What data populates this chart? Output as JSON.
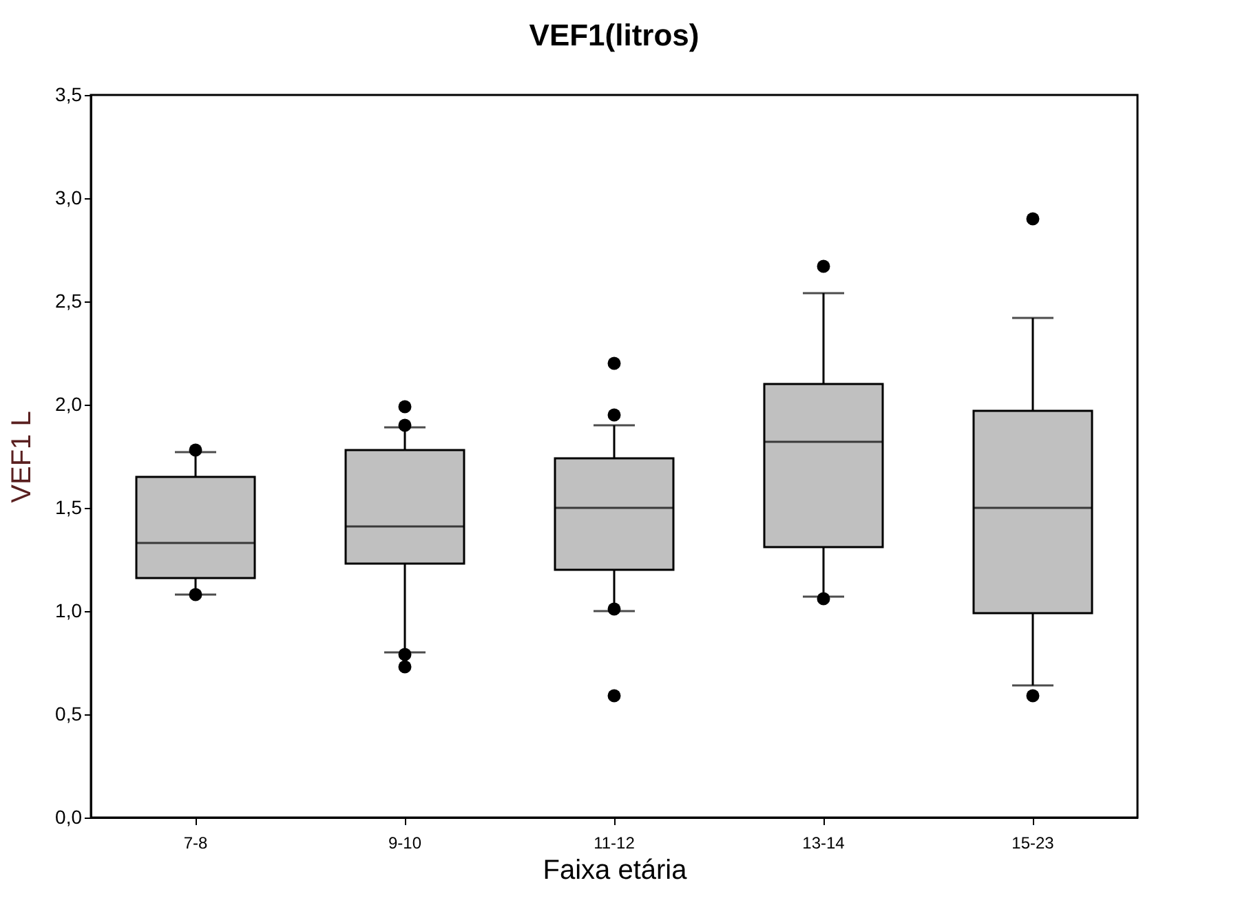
{
  "chart_data": {
    "type": "box",
    "title": "VEF1(litros)",
    "xlabel": "Faixa etária",
    "ylabel": "VEF1 L",
    "categories": [
      "7-8",
      "9-10",
      "11-12",
      "13-14",
      "15-23"
    ],
    "boxes": [
      {
        "low": 1.08,
        "q1": 1.16,
        "median": 1.33,
        "q3": 1.65,
        "high": 1.77,
        "outliers": [
          1.78,
          1.08
        ]
      },
      {
        "low": 0.8,
        "q1": 1.23,
        "median": 1.41,
        "q3": 1.78,
        "high": 1.89,
        "outliers": [
          1.99,
          1.9,
          0.79,
          0.73
        ]
      },
      {
        "low": 1.0,
        "q1": 1.2,
        "median": 1.5,
        "q3": 1.74,
        "high": 1.9,
        "outliers": [
          2.2,
          1.95,
          1.01,
          0.59
        ]
      },
      {
        "low": 1.07,
        "q1": 1.31,
        "median": 1.82,
        "q3": 2.1,
        "high": 2.54,
        "outliers": [
          2.67,
          1.06
        ]
      },
      {
        "low": 0.64,
        "q1": 0.99,
        "median": 1.5,
        "q3": 1.97,
        "high": 2.42,
        "outliers": [
          2.9,
          0.59
        ]
      }
    ],
    "color": "#c0c0c0",
    "ylim": [
      0,
      3.5
    ],
    "yticks": [
      {
        "value": 0,
        "label": "0,0"
      },
      {
        "value": 0.5,
        "label": "0,5"
      },
      {
        "value": 1.0,
        "label": "1,0"
      },
      {
        "value": 1.5,
        "label": "1,5"
      },
      {
        "value": 2.0,
        "label": "2,0"
      },
      {
        "value": 2.5,
        "label": "2,5"
      },
      {
        "value": 3.0,
        "label": "3,0"
      },
      {
        "value": 3.5,
        "label": "3,5"
      }
    ],
    "grid": false
  }
}
